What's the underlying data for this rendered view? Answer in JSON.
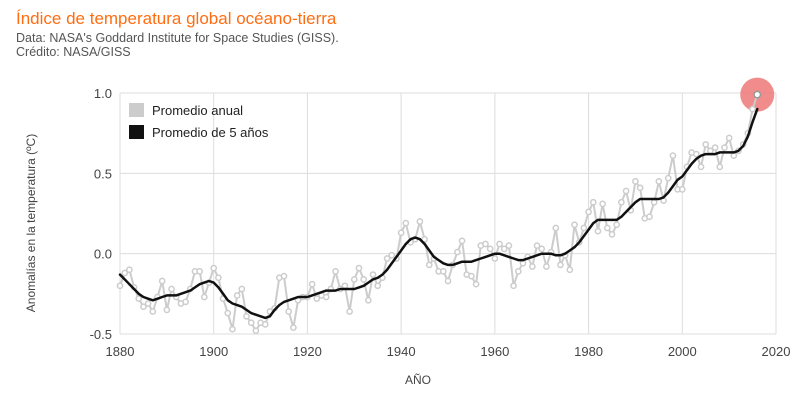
{
  "header": {
    "title": "Índice de temperatura global océano-tierra",
    "source": "Data: NASA's Goddard Institute for Space Studies (GISS).",
    "credit": "Crédito: NASA/GISS"
  },
  "colors": {
    "title": "#ff6d12",
    "annual": "#cccccc",
    "annual_marker_fill": "#ffffff",
    "smooth": "#111111",
    "highlight": "#f08080",
    "grid": "#dddddd"
  },
  "chart_data": {
    "type": "line",
    "xlabel": "AÑO",
    "ylabel": "Anomalías en la temperatura (ºC)",
    "xlim": [
      1880,
      2020
    ],
    "ylim": [
      -0.5,
      1.0
    ],
    "xticks": [
      1880,
      1900,
      1920,
      1940,
      1960,
      1980,
      2000,
      2020
    ],
    "yticks": [
      -0.5,
      0.0,
      0.5,
      1.0
    ],
    "xtick_labels": [
      "1880",
      "1900",
      "1920",
      "1940",
      "1960",
      "1980",
      "2000",
      "2020"
    ],
    "ytick_labels": [
      "-0.5",
      "0.0",
      "0.5",
      "1.0"
    ],
    "grid": true,
    "legend": {
      "position": "top-left",
      "entries": [
        "Promedio anual",
        "Promedio de 5 años"
      ]
    },
    "highlight_year": 2016,
    "series": [
      {
        "name": "Promedio anual",
        "style": "line-markers",
        "x_start": 1880,
        "values": [
          -0.2,
          -0.12,
          -0.1,
          -0.21,
          -0.28,
          -0.33,
          -0.31,
          -0.36,
          -0.27,
          -0.17,
          -0.35,
          -0.22,
          -0.27,
          -0.31,
          -0.3,
          -0.22,
          -0.11,
          -0.11,
          -0.27,
          -0.18,
          -0.09,
          -0.15,
          -0.28,
          -0.37,
          -0.47,
          -0.26,
          -0.22,
          -0.39,
          -0.43,
          -0.48,
          -0.43,
          -0.44,
          -0.36,
          -0.34,
          -0.15,
          -0.14,
          -0.36,
          -0.46,
          -0.29,
          -0.27,
          -0.27,
          -0.19,
          -0.28,
          -0.26,
          -0.27,
          -0.22,
          -0.11,
          -0.22,
          -0.2,
          -0.36,
          -0.16,
          -0.09,
          -0.16,
          -0.29,
          -0.13,
          -0.2,
          -0.15,
          -0.03,
          -0.01,
          -0.03,
          0.13,
          0.19,
          0.07,
          0.09,
          0.2,
          0.09,
          -0.07,
          -0.03,
          -0.11,
          -0.11,
          -0.17,
          -0.07,
          0.01,
          0.08,
          -0.13,
          -0.14,
          -0.19,
          0.05,
          0.06,
          0.03,
          -0.03,
          0.06,
          0.03,
          0.05,
          -0.2,
          -0.11,
          -0.06,
          -0.02,
          -0.08,
          0.05,
          0.03,
          -0.08,
          0.01,
          0.16,
          -0.07,
          -0.01,
          -0.1,
          0.18,
          0.07,
          0.16,
          0.26,
          0.32,
          0.14,
          0.31,
          0.16,
          0.12,
          0.18,
          0.32,
          0.39,
          0.27,
          0.45,
          0.41,
          0.22,
          0.23,
          0.32,
          0.45,
          0.33,
          0.47,
          0.61,
          0.4,
          0.4,
          0.54,
          0.63,
          0.62,
          0.54,
          0.68,
          0.64,
          0.66,
          0.54,
          0.66,
          0.72,
          0.61,
          0.64,
          0.68,
          0.75,
          0.9,
          0.99
        ]
      },
      {
        "name": "Promedio de 5 años",
        "style": "line",
        "x_start": 1880,
        "values": [
          -0.13,
          -0.16,
          -0.19,
          -0.22,
          -0.25,
          -0.27,
          -0.28,
          -0.29,
          -0.28,
          -0.27,
          -0.26,
          -0.26,
          -0.26,
          -0.25,
          -0.24,
          -0.23,
          -0.21,
          -0.19,
          -0.18,
          -0.17,
          -0.18,
          -0.21,
          -0.25,
          -0.29,
          -0.31,
          -0.32,
          -0.33,
          -0.35,
          -0.37,
          -0.38,
          -0.39,
          -0.4,
          -0.39,
          -0.35,
          -0.32,
          -0.3,
          -0.29,
          -0.28,
          -0.27,
          -0.27,
          -0.27,
          -0.26,
          -0.25,
          -0.24,
          -0.23,
          -0.23,
          -0.23,
          -0.22,
          -0.22,
          -0.22,
          -0.22,
          -0.21,
          -0.2,
          -0.18,
          -0.16,
          -0.15,
          -0.13,
          -0.1,
          -0.06,
          -0.02,
          0.02,
          0.06,
          0.09,
          0.1,
          0.09,
          0.06,
          0.02,
          -0.02,
          -0.04,
          -0.06,
          -0.07,
          -0.07,
          -0.06,
          -0.05,
          -0.05,
          -0.05,
          -0.04,
          -0.03,
          -0.02,
          -0.01,
          0.0,
          0.0,
          -0.01,
          -0.02,
          -0.03,
          -0.04,
          -0.04,
          -0.03,
          -0.02,
          -0.01,
          0.0,
          0.0,
          0.0,
          -0.01,
          -0.01,
          0.0,
          0.02,
          0.04,
          0.07,
          0.11,
          0.15,
          0.19,
          0.21,
          0.21,
          0.21,
          0.21,
          0.21,
          0.23,
          0.26,
          0.29,
          0.32,
          0.34,
          0.34,
          0.34,
          0.34,
          0.34,
          0.35,
          0.38,
          0.42,
          0.46,
          0.48,
          0.52,
          0.56,
          0.59,
          0.61,
          0.62,
          0.62,
          0.62,
          0.63,
          0.63,
          0.63,
          0.63,
          0.64,
          0.67,
          0.73,
          0.82,
          0.9
        ]
      }
    ]
  }
}
